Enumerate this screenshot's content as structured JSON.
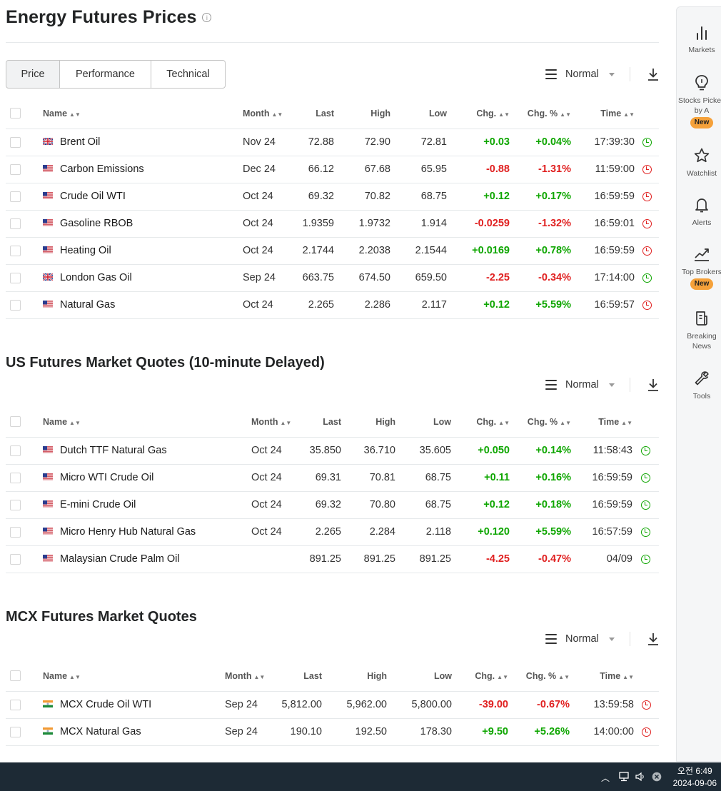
{
  "title": "Energy Futures Prices",
  "tabs": [
    "Price",
    "Performance",
    "Technical"
  ],
  "view_mode": "Normal",
  "columns_main": [
    "Name",
    "Month",
    "Last",
    "High",
    "Low",
    "Chg.",
    "Chg. %",
    "Time"
  ],
  "energy_rows": [
    {
      "flag": "uk",
      "name": "Brent Oil",
      "month": "Nov 24",
      "last": "72.88",
      "high": "72.90",
      "low": "72.81",
      "chg": "+0.03",
      "chg_pct": "+0.04%",
      "time": "17:39:30",
      "dir": "pos",
      "clock": "green"
    },
    {
      "flag": "us",
      "name": "Carbon Emissions",
      "month": "Dec 24",
      "last": "66.12",
      "high": "67.68",
      "low": "65.95",
      "chg": "-0.88",
      "chg_pct": "-1.31%",
      "time": "11:59:00",
      "dir": "neg",
      "clock": "red"
    },
    {
      "flag": "us",
      "name": "Crude Oil WTI",
      "month": "Oct 24",
      "last": "69.32",
      "high": "70.82",
      "low": "68.75",
      "chg": "+0.12",
      "chg_pct": "+0.17%",
      "time": "16:59:59",
      "dir": "pos",
      "clock": "red"
    },
    {
      "flag": "us",
      "name": "Gasoline RBOB",
      "month": "Oct 24",
      "last": "1.9359",
      "high": "1.9732",
      "low": "1.914",
      "chg": "-0.0259",
      "chg_pct": "-1.32%",
      "time": "16:59:01",
      "dir": "neg",
      "clock": "red"
    },
    {
      "flag": "us",
      "name": "Heating Oil",
      "month": "Oct 24",
      "last": "2.1744",
      "high": "2.2038",
      "low": "2.1544",
      "chg": "+0.0169",
      "chg_pct": "+0.78%",
      "time": "16:59:59",
      "dir": "pos",
      "clock": "red"
    },
    {
      "flag": "uk",
      "name": "London Gas Oil",
      "month": "Sep 24",
      "last": "663.75",
      "high": "674.50",
      "low": "659.50",
      "chg": "-2.25",
      "chg_pct": "-0.34%",
      "time": "17:14:00",
      "dir": "neg",
      "clock": "green"
    },
    {
      "flag": "us",
      "name": "Natural Gas",
      "month": "Oct 24",
      "last": "2.265",
      "high": "2.286",
      "low": "2.117",
      "chg": "+0.12",
      "chg_pct": "+5.59%",
      "time": "16:59:57",
      "dir": "pos",
      "clock": "red"
    }
  ],
  "us_title": "US Futures Market Quotes (10-minute Delayed)",
  "us_rows": [
    {
      "flag": "us",
      "name": "Dutch TTF Natural Gas",
      "month": "Oct 24",
      "last": "35.850",
      "high": "36.710",
      "low": "35.605",
      "chg": "+0.050",
      "chg_pct": "+0.14%",
      "time": "11:58:43",
      "dir": "pos",
      "clock": "green"
    },
    {
      "flag": "us",
      "name": "Micro WTI Crude Oil",
      "month": "Oct 24",
      "last": "69.31",
      "high": "70.81",
      "low": "68.75",
      "chg": "+0.11",
      "chg_pct": "+0.16%",
      "time": "16:59:59",
      "dir": "pos",
      "clock": "green"
    },
    {
      "flag": "us",
      "name": "E-mini Crude Oil",
      "month": "Oct 24",
      "last": "69.32",
      "high": "70.80",
      "low": "68.75",
      "chg": "+0.12",
      "chg_pct": "+0.18%",
      "time": "16:59:59",
      "dir": "pos",
      "clock": "green"
    },
    {
      "flag": "us",
      "name": "Micro Henry Hub Natural Gas",
      "month": "Oct 24",
      "last": "2.265",
      "high": "2.284",
      "low": "2.118",
      "chg": "+0.120",
      "chg_pct": "+5.59%",
      "time": "16:57:59",
      "dir": "pos",
      "clock": "green"
    },
    {
      "flag": "us",
      "name": "Malaysian Crude Palm Oil",
      "month": "",
      "last": "891.25",
      "high": "891.25",
      "low": "891.25",
      "chg": "-4.25",
      "chg_pct": "-0.47%",
      "time": "04/09",
      "dir": "neg",
      "clock": "green"
    }
  ],
  "mcx_title": "MCX Futures Market Quotes",
  "mcx_rows": [
    {
      "flag": "in",
      "name": "MCX Crude Oil WTI",
      "month": "Sep 24",
      "last": "5,812.00",
      "high": "5,962.00",
      "low": "5,800.00",
      "chg": "-39.00",
      "chg_pct": "-0.67%",
      "time": "13:59:58",
      "dir": "neg",
      "clock": "red"
    },
    {
      "flag": "in",
      "name": "MCX Natural Gas",
      "month": "Sep 24",
      "last": "190.10",
      "high": "192.50",
      "low": "178.30",
      "chg": "+9.50",
      "chg_pct": "+5.26%",
      "time": "14:00:00",
      "dir": "pos",
      "clock": "red"
    }
  ],
  "sidebar": {
    "markets": "Markets",
    "stocks_picked": "Stocks Picked by A",
    "new_badge": "New",
    "watchlist": "Watchlist",
    "alerts": "Alerts",
    "top_brokers": "Top Brokers",
    "breaking_news": "Breaking News",
    "tools": "Tools"
  },
  "taskbar": {
    "time": "오전 6:49",
    "date": "2024-09-06"
  },
  "colors": {
    "positive": "#0ea600",
    "negative": "#e02020",
    "badge": "#f5a13a",
    "taskbar": "#1d2a35"
  }
}
